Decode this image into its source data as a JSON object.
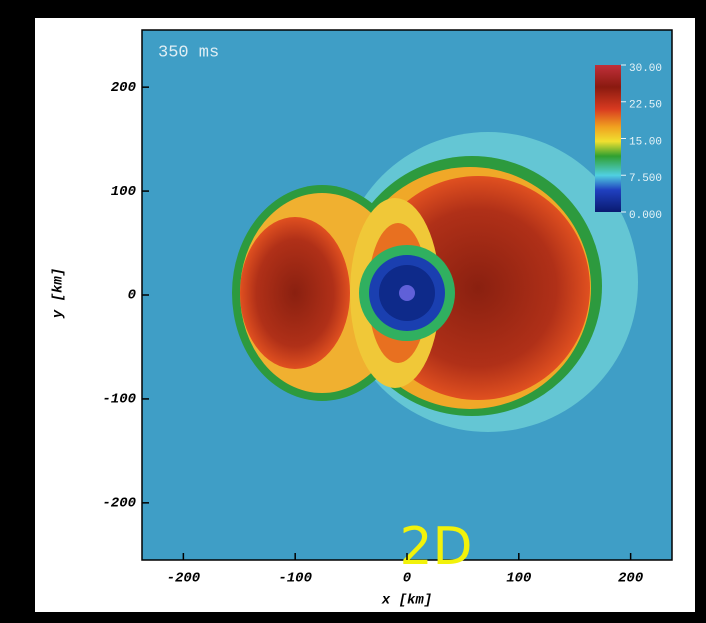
{
  "chart_data": {
    "type": "image",
    "title": "350 ms",
    "annotation": "2D",
    "x_label": "x [km]",
    "y_label": "y [km]",
    "xlim": [
      -237,
      237
    ],
    "ylim": [
      -255,
      255
    ],
    "xticks": [
      -200,
      -100,
      0,
      100,
      200
    ],
    "yticks": [
      -200,
      -100,
      0,
      100,
      200
    ],
    "colorbar": {
      "lim": [
        0,
        30
      ],
      "ticks": [
        {
          "value": 30,
          "label": "30.00"
        },
        {
          "value": 22.5,
          "label": "22.50"
        },
        {
          "value": 15,
          "label": "15.00"
        },
        {
          "value": 7.5,
          "label": "7.500"
        },
        {
          "value": 0,
          "label": "0.000"
        }
      ]
    }
  }
}
